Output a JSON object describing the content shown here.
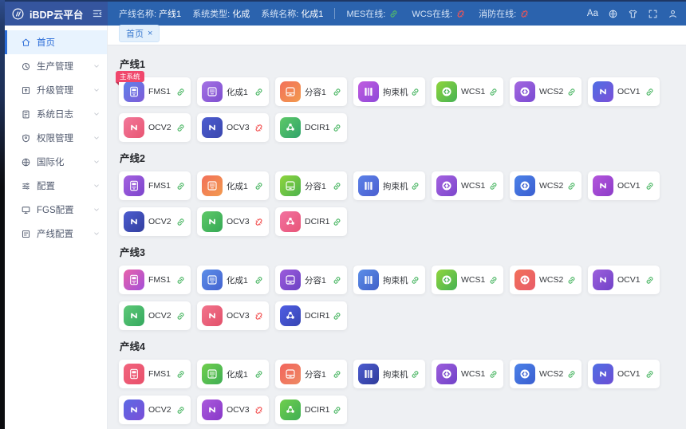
{
  "colors": {
    "header_bg": "#2b63ae",
    "logo_bg": "#35559e",
    "online_green": "#52b96a",
    "offline_red": "#f25555",
    "active_blue": "#2a6cd8",
    "badge_red": "#f0476c",
    "content_bg": "#eef0f3"
  },
  "header": {
    "logo_text": "iBDP云平台",
    "info": [
      {
        "label": "产线名称:",
        "value": "产线1"
      },
      {
        "label": "系统类型:",
        "value": "化成"
      },
      {
        "label": "系统名称:",
        "value": "化成1"
      }
    ],
    "status": [
      {
        "label": "MES在线:",
        "online": true
      },
      {
        "label": "WCS在线:",
        "online": false
      },
      {
        "label": "消防在线:",
        "online": false
      }
    ],
    "actions": [
      {
        "name": "font-size-button",
        "label": "Aa"
      },
      {
        "name": "language-button",
        "icon": "globe-icon"
      },
      {
        "name": "theme-button",
        "icon": "shirt-icon"
      },
      {
        "name": "fullscreen-button",
        "icon": "fullscreen-icon"
      },
      {
        "name": "user-button",
        "icon": "user-icon"
      }
    ]
  },
  "sidebar": {
    "items": [
      {
        "label": "首页",
        "icon": "home-icon",
        "active": true,
        "expandable": false
      },
      {
        "label": "生产管理",
        "icon": "production-icon",
        "active": false,
        "expandable": true
      },
      {
        "label": "升级管理",
        "icon": "upgrade-icon",
        "active": false,
        "expandable": true
      },
      {
        "label": "系统日志",
        "icon": "log-icon",
        "active": false,
        "expandable": true
      },
      {
        "label": "权限管理",
        "icon": "permission-icon",
        "active": false,
        "expandable": true
      },
      {
        "label": "国际化",
        "icon": "i18n-icon",
        "active": false,
        "expandable": true
      },
      {
        "label": "配置",
        "icon": "config-icon",
        "active": false,
        "expandable": true
      },
      {
        "label": "FGS配置",
        "icon": "fgs-icon",
        "active": false,
        "expandable": true
      },
      {
        "label": "产线配置",
        "icon": "line-config-icon",
        "active": false,
        "expandable": true
      }
    ]
  },
  "tabs": [
    {
      "label": "首页",
      "close": "×",
      "active": true
    }
  ],
  "sections": [
    {
      "title": "产线1",
      "cards": [
        {
          "label": "FMS1",
          "type": "fms",
          "online": true,
          "badge": "主系统",
          "colors": [
            "#5f82ea",
            "#7e5bd8"
          ]
        },
        {
          "label": "化成1",
          "type": "formation",
          "online": true,
          "colors": [
            "#a472e4",
            "#7e4fd0"
          ]
        },
        {
          "label": "分容1",
          "type": "grading",
          "online": true,
          "colors": [
            "#f2705a",
            "#f29a4e"
          ]
        },
        {
          "label": "拘束机",
          "type": "restraint",
          "online": true,
          "colors": [
            "#c05ce0",
            "#8e48d8"
          ]
        },
        {
          "label": "WCS1",
          "type": "wcs",
          "online": true,
          "colors": [
            "#8fd53c",
            "#46b254"
          ]
        },
        {
          "label": "WCS2",
          "type": "wcs",
          "online": true,
          "colors": [
            "#a468e0",
            "#7a4ad2"
          ]
        },
        {
          "label": "OCV1",
          "type": "ocv",
          "online": true,
          "colors": [
            "#4f6ee4",
            "#7a50d8"
          ]
        },
        {
          "label": "OCV2",
          "type": "ocv",
          "online": true,
          "colors": [
            "#f2789a",
            "#e85572"
          ]
        },
        {
          "label": "OCV3",
          "type": "ocv",
          "online": false,
          "colors": [
            "#4c5cd0",
            "#3a47ae"
          ]
        },
        {
          "label": "DCIR1",
          "type": "dcir",
          "online": true,
          "colors": [
            "#5ec968",
            "#2fa36a"
          ]
        }
      ]
    },
    {
      "title": "产线2",
      "cards": [
        {
          "label": "FMS1",
          "type": "fms",
          "online": true,
          "colors": [
            "#a462e0",
            "#7c44cc"
          ]
        },
        {
          "label": "化成1",
          "type": "formation",
          "online": true,
          "colors": [
            "#f2705a",
            "#f29a4e"
          ]
        },
        {
          "label": "分容1",
          "type": "grading",
          "online": true,
          "colors": [
            "#8fd53c",
            "#4cb24e"
          ]
        },
        {
          "label": "拘束机",
          "type": "restraint",
          "online": true,
          "colors": [
            "#5c82e8",
            "#4a5ed0"
          ]
        },
        {
          "label": "WCS1",
          "type": "wcs",
          "online": true,
          "colors": [
            "#a462e0",
            "#7c46cc"
          ]
        },
        {
          "label": "WCS2",
          "type": "wcs",
          "online": true,
          "colors": [
            "#4c82e8",
            "#3a5ed0"
          ]
        },
        {
          "label": "OCV1",
          "type": "ocv",
          "online": true,
          "colors": [
            "#b455dc",
            "#8c3cc8"
          ]
        },
        {
          "label": "OCV2",
          "type": "ocv",
          "online": true,
          "colors": [
            "#4c5cd0",
            "#333f9e"
          ]
        },
        {
          "label": "OCV3",
          "type": "ocv",
          "online": false,
          "colors": [
            "#5ec968",
            "#35a855"
          ]
        },
        {
          "label": "DCIR1",
          "type": "dcir",
          "online": true,
          "colors": [
            "#f272a0",
            "#e85578"
          ]
        }
      ]
    },
    {
      "title": "产线3",
      "cards": [
        {
          "label": "FMS1",
          "type": "fms",
          "online": true,
          "colors": [
            "#e862aa",
            "#a44ed8"
          ]
        },
        {
          "label": "化成1",
          "type": "formation",
          "online": true,
          "colors": [
            "#5c8ee8",
            "#4463d0"
          ]
        },
        {
          "label": "分容1",
          "type": "grading",
          "online": true,
          "colors": [
            "#9c5cdc",
            "#6c42c4"
          ]
        },
        {
          "label": "拘束机",
          "type": "restraint",
          "online": true,
          "colors": [
            "#5c8ee8",
            "#4160c8"
          ]
        },
        {
          "label": "WCS1",
          "type": "wcs",
          "online": true,
          "colors": [
            "#8fd53c",
            "#46b254"
          ]
        },
        {
          "label": "WCS2",
          "type": "wcs",
          "online": true,
          "colors": [
            "#f2705a",
            "#e85c68"
          ]
        },
        {
          "label": "OCV1",
          "type": "ocv",
          "online": true,
          "colors": [
            "#9c60dc",
            "#7142c8"
          ]
        },
        {
          "label": "OCV2",
          "type": "ocv",
          "online": true,
          "colors": [
            "#5ec978",
            "#34a85e"
          ]
        },
        {
          "label": "OCV3",
          "type": "ocv",
          "online": false,
          "colors": [
            "#f2748c",
            "#e2506a"
          ]
        },
        {
          "label": "DCIR1",
          "type": "dcir",
          "online": true,
          "colors": [
            "#4f5ee4",
            "#3745b2"
          ]
        }
      ]
    },
    {
      "title": "产线4",
      "cards": [
        {
          "label": "FMS1",
          "type": "fms",
          "online": true,
          "colors": [
            "#f2647e",
            "#e8506a"
          ]
        },
        {
          "label": "化成1",
          "type": "formation",
          "online": true,
          "colors": [
            "#70cf4c",
            "#3fae55"
          ]
        },
        {
          "label": "分容1",
          "type": "grading",
          "online": true,
          "colors": [
            "#f2645c",
            "#ee8a64"
          ]
        },
        {
          "label": "拘束机",
          "type": "restraint",
          "online": true,
          "colors": [
            "#4c5cd0",
            "#303c9a"
          ]
        },
        {
          "label": "WCS1",
          "type": "wcs",
          "online": true,
          "colors": [
            "#9c5edc",
            "#7142c8"
          ]
        },
        {
          "label": "WCS2",
          "type": "wcs",
          "online": true,
          "colors": [
            "#4c82e8",
            "#3a5ed0"
          ]
        },
        {
          "label": "OCV1",
          "type": "ocv",
          "online": true,
          "colors": [
            "#4f6ee4",
            "#6c4ed4"
          ]
        },
        {
          "label": "OCV2",
          "type": "ocv",
          "online": true,
          "colors": [
            "#5c6ae4",
            "#7a4ed8"
          ]
        },
        {
          "label": "OCV3",
          "type": "ocv",
          "online": false,
          "colors": [
            "#aa5adc",
            "#8838c8"
          ]
        },
        {
          "label": "DCIR1",
          "type": "dcir",
          "online": true,
          "colors": [
            "#70cf4c",
            "#3fae55"
          ]
        }
      ]
    }
  ]
}
